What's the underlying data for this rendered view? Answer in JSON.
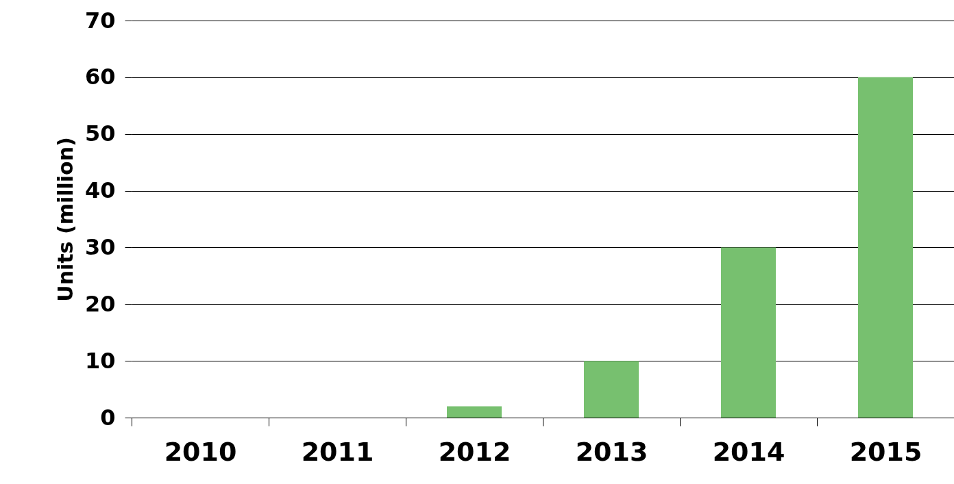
{
  "chart_data": {
    "type": "bar",
    "ylabel": "Units (million)",
    "categories": [
      "2010",
      "2011",
      "2012",
      "2013",
      "2014",
      "2015"
    ],
    "values": [
      0,
      0,
      2,
      10,
      30,
      60
    ],
    "color": "#77c06f",
    "ylim": [
      0,
      70
    ],
    "yticks": [
      0,
      10,
      20,
      30,
      40,
      50,
      60,
      70
    ],
    "grid": "y"
  }
}
